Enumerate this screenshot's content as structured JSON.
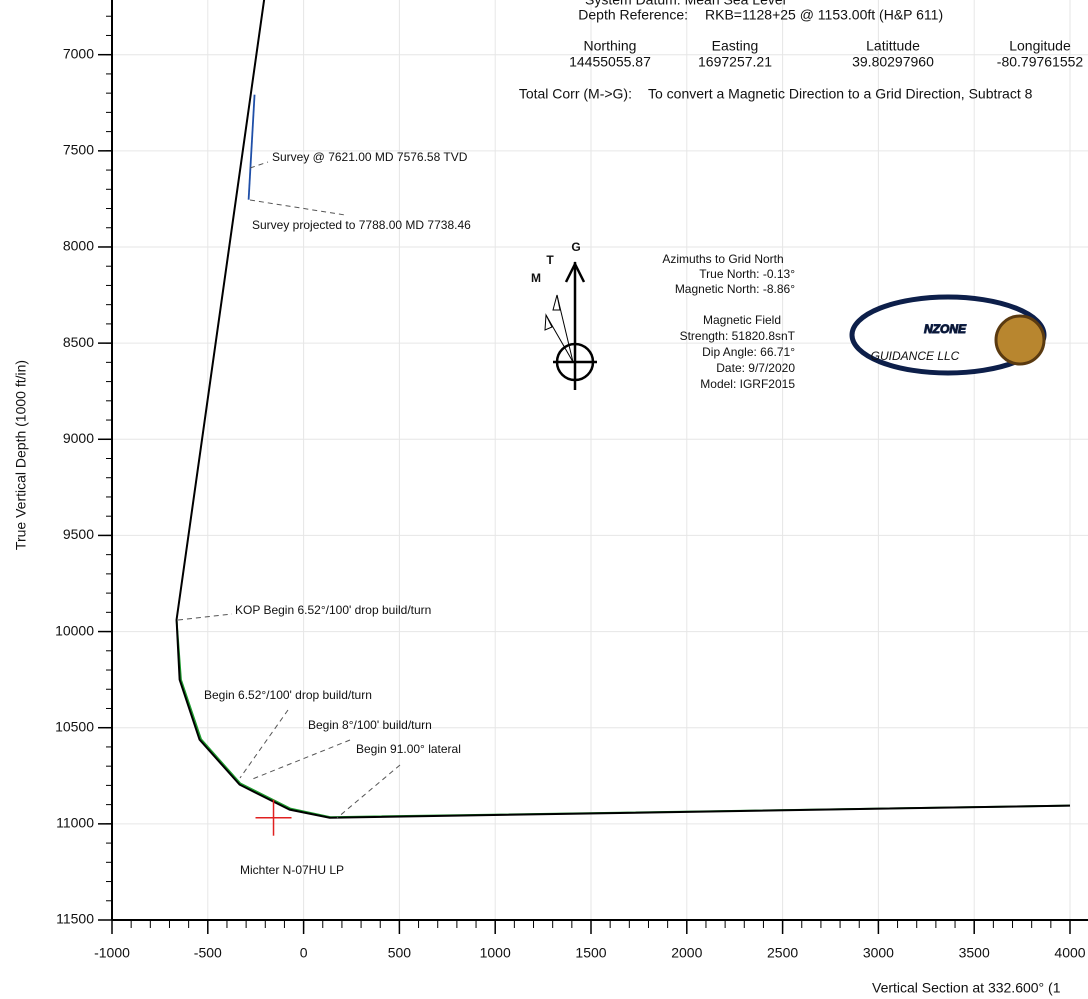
{
  "chart_data": {
    "type": "line",
    "xlabel": "Vertical Section at 332.600° (1",
    "ylabel": "True Vertical Depth (1000 ft/in)",
    "xlim": [
      -1000,
      4000
    ],
    "ylim": [
      6700,
      11500
    ],
    "y_inverted": true,
    "xticks": [
      -1000,
      -500,
      0,
      500,
      1000,
      1500,
      2000,
      2500,
      3000,
      3500,
      4000
    ],
    "yticks": [
      7000,
      7500,
      8000,
      8500,
      9000,
      9500,
      10000,
      10500,
      11000,
      11500
    ],
    "minor_tick_step": 100,
    "grid": true,
    "series": [
      {
        "color": "#1c9b2c",
        "x": [
          -663,
          -640,
          -535,
          -330,
          -70,
          140,
          4000
        ],
        "values": [
          9938,
          10250,
          10560,
          10790,
          10920,
          10965,
          10905
        ]
      },
      {
        "color": "#000000",
        "x": [
          -204,
          -663,
          -647,
          -543,
          -334,
          -73,
          136,
          4000
        ],
        "values": [
          6700,
          9938,
          10250,
          10562,
          10796,
          10926,
          10968,
          10905
        ]
      },
      {
        "color": "#1f4fa8",
        "x": [
          -256,
          -287
        ],
        "values": [
          7208,
          7754
        ]
      }
    ],
    "target": {
      "x": -157,
      "y": 10968,
      "label": "Michter N-07HU LP",
      "color": "#e02020"
    },
    "annotations": [
      "KOP Begin 6.52°/100' drop build/turn",
      "Begin 6.52°/100' drop build/turn",
      "Begin 8°/100'  build/turn",
      "Begin 91.00° lateral",
      "Survey @ 7621.00 MD 7576.58 TVD",
      "Survey projected to 7788.00 MD 7738.46"
    ],
    "header": {
      "datum": "System  Datum:  Mean Sea Level",
      "depth_reference_label": "Depth Reference:",
      "depth_reference": "RKB=1128+25 @ 1153.00ft (H&P 611)",
      "columns": [
        {
          "name": "Northing",
          "value": "14455055.87"
        },
        {
          "name": "Easting",
          "value": "1697257.21"
        },
        {
          "name": "Latittude",
          "value": "39.80297960"
        },
        {
          "name": "Longitude",
          "value": "-80.79761552"
        }
      ],
      "total_corr_label": "Total Corr (M->G):",
      "total_corr": "To convert a Magnetic Direction to a Grid Direction, Subtract 8"
    },
    "north": {
      "grid": "G",
      "true": "T",
      "magnetic": "M"
    },
    "azimuths": [
      "Azimuths to Grid North",
      "True North: -0.13°",
      "Magnetic North: -8.86°"
    ],
    "magnetic_field": [
      "Magnetic  Field",
      "Strength: 51820.8snT",
      "Dip Angle: 66.71°",
      "Date:  9/7/2020",
      "Model: IGRF2015"
    ],
    "logo": "NZONE",
    "logo_sub": "GUIDANCE LLC"
  }
}
